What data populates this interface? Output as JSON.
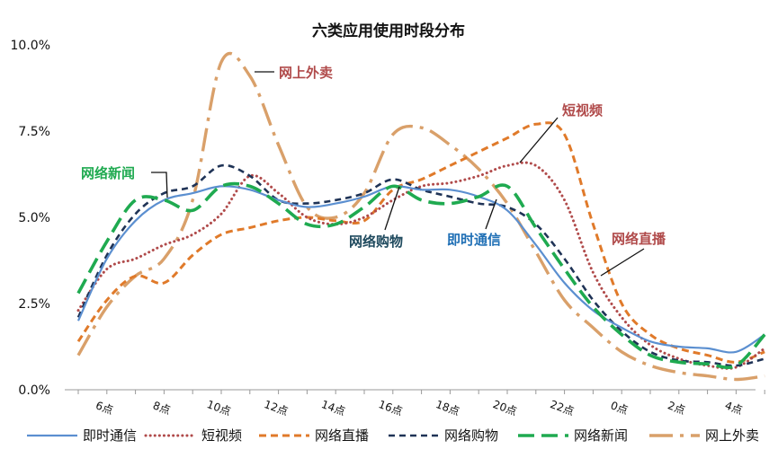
{
  "chart_data": {
    "type": "line",
    "title": "六类应用使用时段分布",
    "xlabel": "",
    "ylabel": "",
    "x": [
      5,
      6,
      7,
      8,
      9,
      10,
      11,
      12,
      13,
      14,
      15,
      16,
      17,
      18,
      19,
      20,
      21,
      22,
      23,
      0,
      1,
      2,
      3,
      4,
      5
    ],
    "x_tick_labels": [
      "6点",
      "8点",
      "10点",
      "12点",
      "14点",
      "16点",
      "18点",
      "20点",
      "22点",
      "0点",
      "2点",
      "4点"
    ],
    "y_tick_labels": [
      "0.0%",
      "2.5%",
      "5.0%",
      "7.5%",
      "10.0%"
    ],
    "ylim": [
      0,
      10
    ],
    "y_unit": "%",
    "grid": false,
    "legend_position": "bottom",
    "series": [
      {
        "name": "即时通信",
        "color": "#5b8fd0",
        "dash": "solid",
        "values": [
          2.0,
          3.8,
          4.9,
          5.5,
          5.7,
          5.9,
          5.8,
          5.5,
          5.3,
          5.4,
          5.6,
          5.9,
          5.8,
          5.8,
          5.6,
          5.2,
          4.2,
          3.1,
          2.3,
          1.8,
          1.4,
          1.25,
          1.2,
          1.1,
          1.6
        ]
      },
      {
        "name": "短视频",
        "color": "#b04a4a",
        "dash": "dot",
        "values": [
          2.3,
          3.5,
          3.8,
          4.2,
          4.5,
          5.1,
          6.2,
          5.7,
          5.0,
          4.8,
          5.0,
          5.5,
          5.9,
          6.0,
          6.2,
          6.5,
          6.5,
          5.5,
          3.4,
          2.1,
          1.3,
          0.9,
          0.7,
          0.65,
          1.2
        ]
      },
      {
        "name": "网络直播",
        "color": "#e07a2a",
        "dash": "short-dash",
        "values": [
          1.4,
          2.6,
          3.3,
          3.1,
          3.9,
          4.5,
          4.7,
          4.9,
          5.0,
          4.9,
          4.9,
          5.8,
          6.1,
          6.5,
          6.9,
          7.3,
          7.7,
          7.4,
          4.8,
          2.5,
          1.6,
          1.2,
          1.0,
          0.8,
          1.1
        ]
      },
      {
        "name": "网络购物",
        "color": "#1f3356",
        "dash": "dash",
        "values": [
          2.1,
          3.9,
          5.1,
          5.7,
          5.9,
          6.5,
          6.2,
          5.5,
          5.4,
          5.5,
          5.7,
          6.1,
          5.8,
          5.6,
          5.4,
          5.3,
          4.8,
          3.8,
          2.6,
          1.7,
          1.1,
          0.85,
          0.8,
          0.7,
          0.9
        ]
      },
      {
        "name": "网络新闻",
        "color": "#1faa50",
        "dash": "long-dash",
        "values": [
          2.8,
          4.3,
          5.5,
          5.5,
          5.2,
          5.9,
          5.9,
          5.4,
          4.8,
          4.8,
          5.3,
          5.9,
          5.5,
          5.4,
          5.6,
          5.9,
          4.7,
          3.5,
          2.4,
          1.6,
          1.0,
          0.8,
          0.75,
          0.7,
          1.6
        ]
      },
      {
        "name": "网上外卖",
        "color": "#d9a06a",
        "dash": "dash-dot",
        "values": [
          1.0,
          2.4,
          3.3,
          3.8,
          5.5,
          9.5,
          9.1,
          7.1,
          5.3,
          5.0,
          5.7,
          7.4,
          7.6,
          7.1,
          6.4,
          5.4,
          4.0,
          2.6,
          1.8,
          1.1,
          0.7,
          0.5,
          0.4,
          0.3,
          0.4
        ]
      }
    ],
    "annotations": [
      {
        "text": "网上外卖",
        "series": "网上外卖",
        "color": "#b04a4a"
      },
      {
        "text": "短视频",
        "series": "短视频",
        "color": "#b04a4a"
      },
      {
        "text": "网络新闻",
        "series": "网络新闻",
        "color": "#1faa50"
      },
      {
        "text": "网络购物",
        "series": "网络购物",
        "color": "#1f4a5e"
      },
      {
        "text": "即时通信",
        "series": "即时通信",
        "color": "#1f6fb5"
      },
      {
        "text": "网络直播",
        "series": "网络直播",
        "color": "#b04a4a"
      }
    ]
  }
}
